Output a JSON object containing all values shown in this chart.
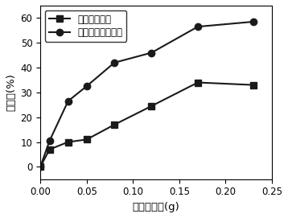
{
  "series1_label": "橘子皮衍生炭",
  "series2_label": "改性橘子皮衍生炭",
  "series1_x": [
    0.0,
    0.01,
    0.03,
    0.05,
    0.08,
    0.12,
    0.17,
    0.23
  ],
  "series1_y": [
    0.0,
    7.0,
    10.0,
    11.0,
    17.0,
    24.5,
    34.0,
    33.0
  ],
  "series2_x": [
    0.0,
    0.01,
    0.03,
    0.05,
    0.08,
    0.12,
    0.17,
    0.23
  ],
  "series2_y": [
    0.0,
    10.5,
    26.5,
    32.5,
    42.0,
    46.0,
    56.5,
    58.5
  ],
  "xlabel": "吸附剂用量(g)",
  "ylabel": "吸附率(%)",
  "xlim": [
    0,
    0.25
  ],
  "ylim": [
    -5,
    65
  ],
  "yticks": [
    0,
    10,
    20,
    30,
    40,
    50,
    60
  ],
  "xticks": [
    0.0,
    0.05,
    0.1,
    0.15,
    0.2,
    0.25
  ],
  "line_color": "#1a1a1a",
  "marker1": "s",
  "marker2": "o",
  "markersize": 6,
  "linewidth": 1.5,
  "legend_fontsize": 8.5,
  "axis_fontsize": 9.5,
  "tick_fontsize": 8.5,
  "background_color": "#ffffff"
}
